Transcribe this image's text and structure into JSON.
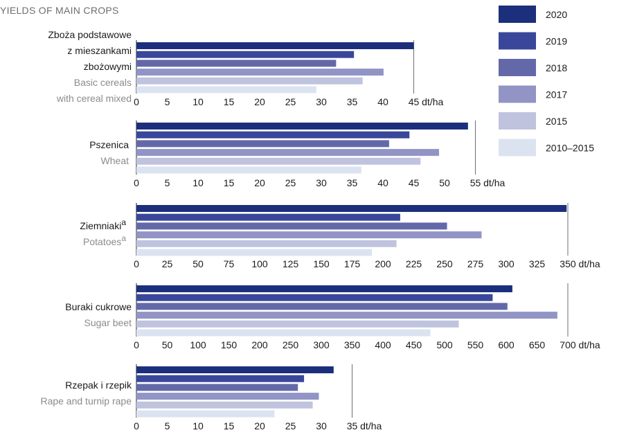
{
  "title": "YIELDS OF MAIN CROPS",
  "colors": {
    "2020": "#1c2f7c",
    "2019": "#39479a",
    "2018": "#6369a8",
    "2017": "#9194c4",
    "2015": "#c0c3de",
    "2010–2015": "#dce3f0"
  },
  "chart_data": [
    {
      "type": "bar",
      "orientation": "horizontal",
      "label_pl": [
        "Zboża podstawowe",
        "z mieszankami",
        "zbożowymi"
      ],
      "label_en": [
        "Basic cereals",
        "with cereal mixed"
      ],
      "series": [
        {
          "name": "2020",
          "value": 45
        },
        {
          "name": "2019",
          "value": 35.3
        },
        {
          "name": "2018",
          "value": 32.4
        },
        {
          "name": "2017",
          "value": 40.1
        },
        {
          "name": "2015",
          "value": 36.7
        },
        {
          "name": "2010–2015",
          "value": 29.2
        }
      ],
      "xlim": [
        0,
        45
      ],
      "ticks": [
        0,
        5,
        10,
        15,
        20,
        25,
        30,
        35,
        40,
        45
      ],
      "unit": "dt/ha"
    },
    {
      "type": "bar",
      "orientation": "horizontal",
      "label_pl": [
        "Pszenica"
      ],
      "label_en": [
        "Wheat"
      ],
      "series": [
        {
          "name": "2020",
          "value": 53.8
        },
        {
          "name": "2019",
          "value": 44.3
        },
        {
          "name": "2018",
          "value": 41
        },
        {
          "name": "2017",
          "value": 49.1
        },
        {
          "name": "2015",
          "value": 46.1
        },
        {
          "name": "2010–2015",
          "value": 36.5
        }
      ],
      "xlim": [
        0,
        55
      ],
      "ticks": [
        0,
        5,
        10,
        15,
        20,
        25,
        30,
        35,
        40,
        45,
        50,
        55
      ],
      "unit": "dt/ha"
    },
    {
      "type": "bar",
      "orientation": "horizontal",
      "label_pl": [
        "Ziemniaki"
      ],
      "label_en": [
        "Potatoes"
      ],
      "superscript": "a",
      "series": [
        {
          "name": "2020",
          "value": 349
        },
        {
          "name": "2019",
          "value": 214
        },
        {
          "name": "2018",
          "value": 252
        },
        {
          "name": "2017",
          "value": 280
        },
        {
          "name": "2015",
          "value": 211
        },
        {
          "name": "2010–2015",
          "value": 191
        }
      ],
      "xlim": [
        0,
        350
      ],
      "ticks": [
        0,
        25,
        50,
        75,
        100,
        125,
        150,
        175,
        200,
        225,
        250,
        275,
        300,
        325,
        350
      ],
      "unit": "dt/ha"
    },
    {
      "type": "bar",
      "orientation": "horizontal",
      "label_pl": [
        "Buraki cukrowe"
      ],
      "label_en": [
        "Sugar beet"
      ],
      "series": [
        {
          "name": "2020",
          "value": 610
        },
        {
          "name": "2019",
          "value": 578
        },
        {
          "name": "2018",
          "value": 602
        },
        {
          "name": "2017",
          "value": 683
        },
        {
          "name": "2015",
          "value": 523
        },
        {
          "name": "2010–2015",
          "value": 477
        }
      ],
      "xlim": [
        0,
        700
      ],
      "ticks": [
        0,
        50,
        100,
        150,
        200,
        250,
        300,
        350,
        400,
        450,
        500,
        550,
        600,
        650,
        700
      ],
      "unit": "dt/ha"
    },
    {
      "type": "bar",
      "orientation": "horizontal",
      "label_pl": [
        "Rzepak i rzepik"
      ],
      "label_en": [
        "Rape and turnip rape"
      ],
      "series": [
        {
          "name": "2020",
          "value": 32
        },
        {
          "name": "2019",
          "value": 27.2
        },
        {
          "name": "2018",
          "value": 26.2
        },
        {
          "name": "2017",
          "value": 29.6
        },
        {
          "name": "2015",
          "value": 28.6
        },
        {
          "name": "2010–2015",
          "value": 22.4
        }
      ],
      "xlim": [
        0,
        35
      ],
      "ticks": [
        0,
        5,
        10,
        15,
        20,
        25,
        30,
        35
      ],
      "unit": "dt/ha"
    }
  ],
  "legend": [
    "2020",
    "2019",
    "2018",
    "2017",
    "2015",
    "2010–2015"
  ]
}
